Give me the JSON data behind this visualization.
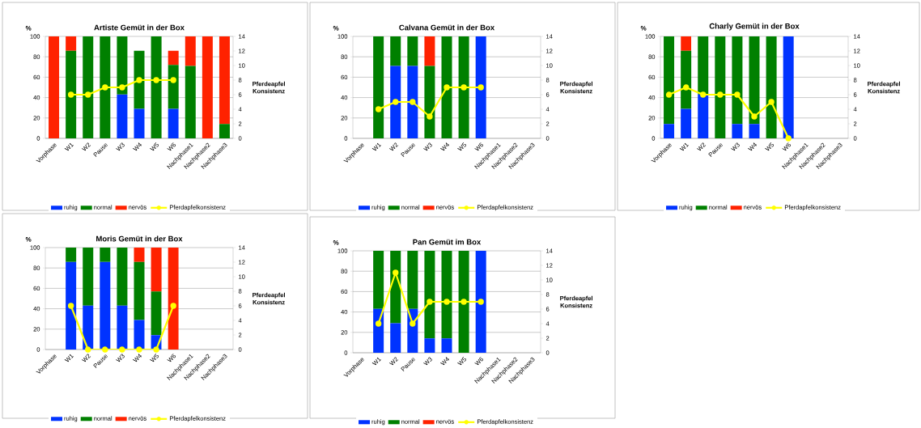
{
  "chart_data": [
    {
      "type": "bar",
      "stacked": true,
      "title": "Artiste Gemüt in der Box",
      "ylabel": "%",
      "y2label": "Pferdeapfel Konsistenz",
      "categories": [
        "Vorphase",
        "W1",
        "W2",
        "Pause",
        "W3",
        "W4",
        "W5",
        "W6",
        "Nachphase1",
        "Nachphase2",
        "Nachphase3"
      ],
      "ylim": [
        0,
        100
      ],
      "yticks": [
        0,
        20,
        40,
        60,
        80,
        100
      ],
      "y2lim": [
        0,
        14
      ],
      "y2ticks": [
        0,
        2,
        4,
        6,
        8,
        10,
        12,
        14
      ],
      "grid": "y",
      "legend": "bottom",
      "series": [
        {
          "name": "ruhig",
          "color": "#0033ff",
          "values": [
            0,
            0,
            0,
            0,
            43,
            29,
            0,
            29,
            0,
            0,
            0
          ]
        },
        {
          "name": "normal",
          "color": "#008000",
          "values": [
            0,
            86,
            100,
            100,
            57,
            57,
            100,
            43,
            71,
            0,
            14
          ]
        },
        {
          "name": "nervös",
          "color": "#ff2200",
          "values": [
            100,
            14,
            0,
            0,
            0,
            0,
            0,
            14,
            29,
            100,
            86
          ]
        },
        {
          "name": "Pferdapfelkonsistenz",
          "type": "line",
          "axis": "y2",
          "marker": "circle",
          "color": "#ffff00",
          "values": [
            null,
            6,
            6,
            7,
            7,
            8,
            8,
            8,
            null,
            null,
            null
          ]
        }
      ]
    },
    {
      "type": "bar",
      "stacked": true,
      "title": "Calvana Gemüt in der Box",
      "ylabel": "%",
      "y2label": "Pferdeapfel Konsistenz",
      "categories": [
        "Vorphase",
        "W1",
        "W2",
        "Pause",
        "W3",
        "W4",
        "W5",
        "W6",
        "Nachphase1",
        "Nachphase2",
        "Nachphase3"
      ],
      "ylim": [
        0,
        100
      ],
      "yticks": [
        0,
        20,
        40,
        60,
        80,
        100
      ],
      "y2lim": [
        0,
        14
      ],
      "y2ticks": [
        0,
        2,
        4,
        6,
        8,
        10,
        12,
        14
      ],
      "grid": "y",
      "legend": "bottom",
      "series": [
        {
          "name": "ruhig",
          "color": "#0033ff",
          "values": [
            null,
            0,
            71,
            71,
            0,
            0,
            0,
            100,
            null,
            null,
            null
          ]
        },
        {
          "name": "normal",
          "color": "#008000",
          "values": [
            null,
            100,
            29,
            29,
            71,
            100,
            100,
            0,
            null,
            null,
            null
          ]
        },
        {
          "name": "nervös",
          "color": "#ff2200",
          "values": [
            null,
            0,
            0,
            0,
            29,
            0,
            0,
            0,
            null,
            null,
            null
          ]
        },
        {
          "name": "Pferdapfelkonsistenz",
          "type": "line",
          "axis": "y2",
          "marker": "circle",
          "color": "#ffff00",
          "values": [
            null,
            4,
            5,
            5,
            3,
            7,
            7,
            7,
            null,
            null,
            null
          ]
        }
      ]
    },
    {
      "type": "bar",
      "stacked": true,
      "title": "Charly Gemüt in der Box",
      "ylabel": "%",
      "y2label": "Pferdeapfel Konsistenz",
      "categories": [
        "Vorphase",
        "W1",
        "W2",
        "Pause",
        "W3",
        "W4",
        "W5",
        "W6",
        "Nachphase1",
        "Nachphase2",
        "Nachphase3"
      ],
      "ylim": [
        0,
        100
      ],
      "yticks": [
        0,
        20,
        40,
        60,
        80,
        100
      ],
      "y2lim": [
        0,
        14
      ],
      "y2ticks": [
        0,
        2,
        4,
        6,
        8,
        10,
        12,
        14
      ],
      "grid": "y",
      "legend": "bottom",
      "series": [
        {
          "name": "ruhig",
          "color": "#0033ff",
          "values": [
            14,
            29,
            43,
            0,
            14,
            14,
            0,
            100,
            null,
            null,
            null
          ]
        },
        {
          "name": "normal",
          "color": "#008000",
          "values": [
            86,
            57,
            57,
            100,
            86,
            86,
            100,
            0,
            null,
            null,
            null
          ]
        },
        {
          "name": "nervös",
          "color": "#ff2200",
          "values": [
            0,
            14,
            0,
            0,
            0,
            0,
            0,
            0,
            null,
            null,
            null
          ]
        },
        {
          "name": "Pferdapfelkonsistenz",
          "type": "line",
          "axis": "y2",
          "marker": "circle",
          "color": "#ffff00",
          "values": [
            6,
            7,
            6,
            6,
            6,
            3,
            5,
            0,
            null,
            null,
            null
          ]
        }
      ]
    },
    {
      "type": "bar",
      "stacked": true,
      "title": "Moris Gemüt in der Box",
      "ylabel": "%",
      "y2label": "Pferdeapfel Konsistenz",
      "categories": [
        "Vorphase",
        "W1",
        "W2",
        "Pause",
        "W3",
        "W4",
        "W5",
        "W6",
        "Nachphase1",
        "Nachphase2",
        "Nachphase3"
      ],
      "ylim": [
        0,
        100
      ],
      "yticks": [
        0,
        20,
        40,
        60,
        80,
        100
      ],
      "y2lim": [
        0,
        14
      ],
      "y2ticks": [
        0,
        2,
        4,
        6,
        8,
        10,
        12,
        14
      ],
      "grid": "y",
      "legend": "bottom",
      "series": [
        {
          "name": "ruhig",
          "color": "#0033ff",
          "values": [
            null,
            86,
            43,
            86,
            43,
            29,
            14,
            0,
            null,
            null,
            null
          ]
        },
        {
          "name": "normal",
          "color": "#008000",
          "values": [
            null,
            14,
            57,
            14,
            57,
            57,
            43,
            0,
            null,
            null,
            null
          ]
        },
        {
          "name": "nervös",
          "color": "#ff2200",
          "values": [
            null,
            0,
            0,
            0,
            0,
            14,
            43,
            100,
            null,
            null,
            null
          ]
        },
        {
          "name": "Pferdapfelkonsistenz",
          "type": "line",
          "axis": "y2",
          "marker": "circle",
          "color": "#ffff00",
          "values": [
            null,
            6,
            0,
            0,
            0,
            0,
            0,
            6,
            null,
            null,
            null
          ]
        }
      ]
    },
    {
      "type": "bar",
      "stacked": true,
      "title": "Pan Gemüt im Box",
      "ylabel": "%",
      "y2label": "Pferdeapfel Konsistenz",
      "categories": [
        "Vorphase",
        "W1",
        "W2",
        "Pause",
        "W3",
        "W4",
        "W5",
        "W6",
        "Nachphase1",
        "Nachphase2",
        "Nachphase3"
      ],
      "ylim": [
        0,
        100
      ],
      "yticks": [
        0,
        20,
        40,
        60,
        80,
        100
      ],
      "y2lim": [
        0,
        14
      ],
      "y2ticks": [
        0,
        2,
        4,
        6,
        8,
        10,
        12,
        14
      ],
      "grid": "y",
      "legend": "bottom",
      "series": [
        {
          "name": "ruhig",
          "color": "#0033ff",
          "values": [
            null,
            43,
            29,
            43,
            14,
            14,
            0,
            100,
            null,
            null,
            null
          ]
        },
        {
          "name": "normal",
          "color": "#008000",
          "values": [
            null,
            57,
            71,
            57,
            86,
            86,
            100,
            0,
            null,
            null,
            null
          ]
        },
        {
          "name": "nervös",
          "color": "#ff2200",
          "values": [
            null,
            0,
            0,
            0,
            0,
            0,
            0,
            0,
            null,
            null,
            null
          ]
        },
        {
          "name": "Pferdapfelkonsistenz",
          "type": "line",
          "axis": "y2",
          "marker": "circle",
          "color": "#ffff00",
          "values": [
            null,
            4,
            11,
            4,
            7,
            7,
            7,
            7,
            null,
            null,
            null
          ]
        }
      ]
    }
  ]
}
